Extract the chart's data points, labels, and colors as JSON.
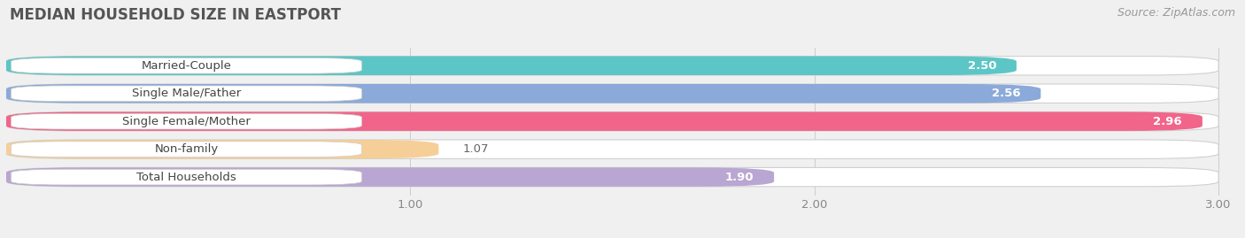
{
  "title": "MEDIAN HOUSEHOLD SIZE IN EASTPORT",
  "source": "Source: ZipAtlas.com",
  "categories": [
    "Married-Couple",
    "Single Male/Father",
    "Single Female/Mother",
    "Non-family",
    "Total Households"
  ],
  "values": [
    2.5,
    2.56,
    2.96,
    1.07,
    1.9
  ],
  "bar_colors": [
    "#45bfbf",
    "#7b9fd4",
    "#f0507a",
    "#f5c98a",
    "#b09acc"
  ],
  "xmin": 0.0,
  "xmax": 3.0,
  "xticks": [
    1.0,
    2.0,
    3.0
  ],
  "background_color": "#f0f0f0",
  "title_fontsize": 12,
  "label_fontsize": 9.5,
  "value_fontsize": 9.5,
  "source_fontsize": 9,
  "bar_height": 0.68,
  "bar_gap": 0.32
}
